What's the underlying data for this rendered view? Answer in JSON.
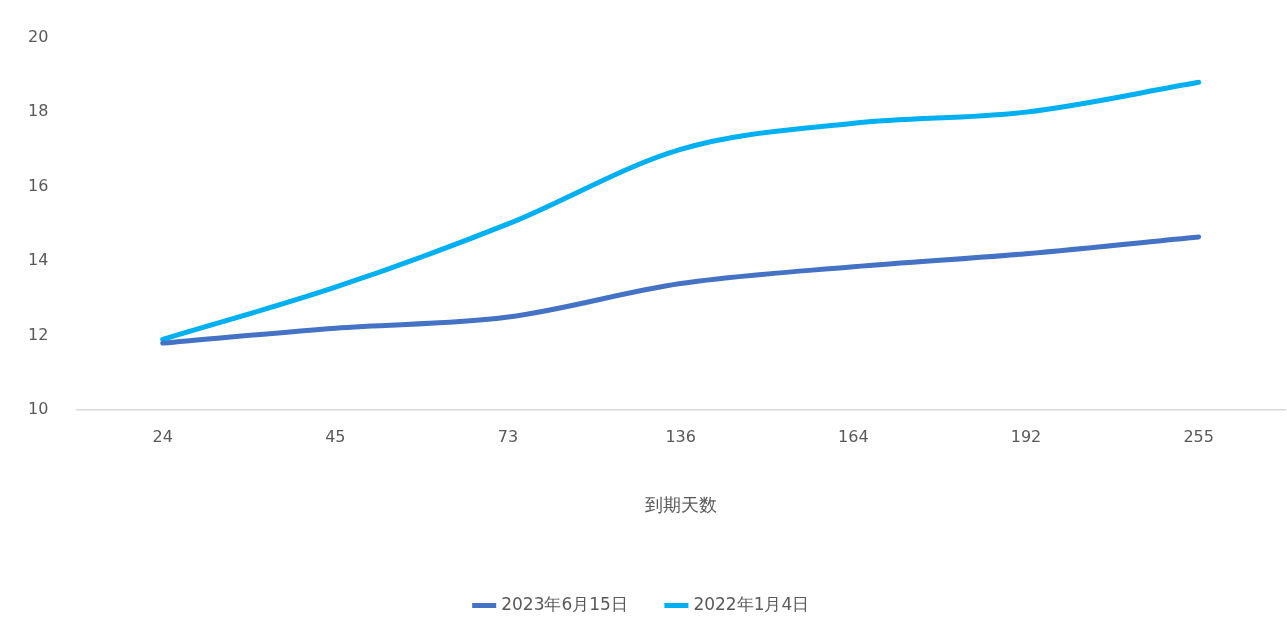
{
  "chart_data": {
    "type": "line",
    "xlabel": "到期天数",
    "categories": [
      "24",
      "45",
      "73",
      "136",
      "164",
      "192",
      "255"
    ],
    "series": [
      {
        "name": "2023年6月15日",
        "color": "#4472c4",
        "values": [
          11.8,
          12.2,
          12.5,
          13.4,
          13.85,
          14.2,
          14.65
        ]
      },
      {
        "name": "2022年1月4日",
        "color": "#00b0f0",
        "values": [
          11.9,
          13.3,
          15.0,
          17.0,
          17.7,
          18.0,
          18.8
        ]
      }
    ],
    "ylim": [
      10,
      20
    ],
    "yticks": [
      10,
      12,
      14,
      16,
      18,
      20
    ],
    "grid": false,
    "legend": "bottom",
    "marker": "none",
    "line_style": "solid"
  }
}
